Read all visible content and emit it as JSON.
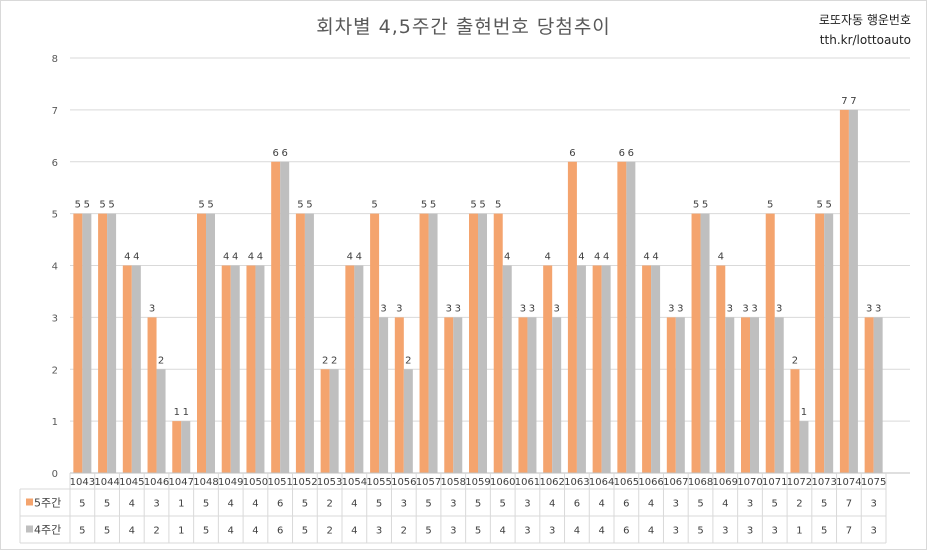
{
  "chart_data": {
    "type": "bar",
    "title": "회차별 4,5주간 출현번호 당첨추이",
    "categories": [
      "1043",
      "1044",
      "1045",
      "1046",
      "1047",
      "1048",
      "1049",
      "1050",
      "1051",
      "1052",
      "1053",
      "1054",
      "1055",
      "1056",
      "1057",
      "1058",
      "1059",
      "1060",
      "1061",
      "1062",
      "1063",
      "1064",
      "1065",
      "1066",
      "1067",
      "1068",
      "1069",
      "1070",
      "1071",
      "1072",
      "1073",
      "1074",
      "1075"
    ],
    "series": [
      {
        "name": "5주간",
        "color": "#f4a46e",
        "values": [
          5,
          5,
          4,
          3,
          1,
          5,
          4,
          4,
          6,
          5,
          2,
          4,
          5,
          3,
          5,
          3,
          5,
          5,
          3,
          4,
          6,
          4,
          6,
          4,
          3,
          5,
          4,
          3,
          5,
          2,
          5,
          7,
          3
        ]
      },
      {
        "name": "4주간",
        "color": "#bfbfbf",
        "values": [
          5,
          5,
          4,
          2,
          1,
          5,
          4,
          4,
          6,
          5,
          2,
          4,
          3,
          2,
          5,
          3,
          5,
          4,
          3,
          3,
          4,
          4,
          6,
          4,
          3,
          5,
          3,
          3,
          3,
          1,
          5,
          7,
          3
        ]
      }
    ],
    "ylim": [
      0,
      8
    ],
    "yticks": [
      "0",
      "1",
      "2",
      "3",
      "4",
      "5",
      "6",
      "7",
      "8"
    ],
    "grid": true,
    "data_table": true
  },
  "brand": {
    "line1": "로또자동 행운번호",
    "line2": "tth.kr/lottoauto"
  }
}
